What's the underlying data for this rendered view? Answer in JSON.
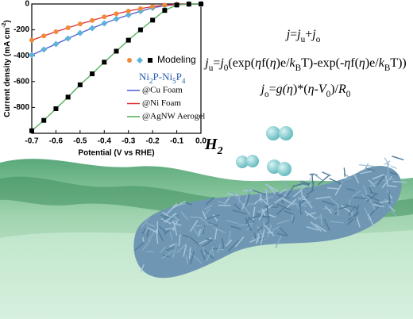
{
  "chart_data": {
    "type": "line",
    "x": [
      -0.7,
      -0.65,
      -0.6,
      -0.55,
      -0.5,
      -0.45,
      -0.4,
      -0.35,
      -0.3,
      -0.25,
      -0.2,
      -0.15,
      -0.1,
      -0.05,
      0.0
    ],
    "series": [
      {
        "name": "@Cu Foam",
        "color": "#4a5bd6",
        "marker_color": "#5ab4d8",
        "marker": "diamond",
        "values": [
          -395,
          -352,
          -310,
          -267,
          -225,
          -187,
          -150,
          -116,
          -85,
          -56,
          -30,
          -14,
          -5,
          -1,
          0
        ]
      },
      {
        "name": "@Ni Foam",
        "color": "#e03030",
        "marker_color": "#f08a3a",
        "marker": "circle",
        "values": [
          -280,
          -247,
          -215,
          -184,
          -155,
          -127,
          -100,
          -76,
          -55,
          -36,
          -20,
          -9,
          -3,
          -1,
          0
        ]
      },
      {
        "name": "@AgNW Aerogel",
        "color": "#4caf50",
        "marker_color": "#000000",
        "marker": "square",
        "values": [
          -980,
          -900,
          -810,
          -720,
          -625,
          -540,
          -450,
          -365,
          -280,
          -200,
          -125,
          -50,
          -8,
          -1,
          0
        ]
      }
    ],
    "marker_legend": "Modeling",
    "legend_title": [
      "Ni",
      "2",
      "P-Ni",
      "5",
      "P",
      "4"
    ],
    "xlabel": "Potential (V vs RHE)",
    "ylabel": [
      "Current density (mA cm",
      "-2",
      ")"
    ],
    "xlim": [
      -0.7,
      0.0
    ],
    "ylim": [
      -1000,
      0
    ],
    "xticks": [
      -0.7,
      -0.6,
      -0.5,
      -0.4,
      -0.3,
      -0.2,
      -0.1,
      {
        "value": 0.0,
        "label": "0.0"
      }
    ],
    "yticks": [
      0,
      -200,
      -400,
      -600,
      -800
    ]
  },
  "equations": [
    [
      "j",
      "=",
      "j",
      "u",
      "+",
      "j",
      "o"
    ],
    [
      "j",
      "u",
      "=",
      "j",
      "0",
      "(exp(",
      "η",
      "f(",
      "η",
      ")e/",
      "k",
      "B",
      "T)-exp(-",
      "η",
      "f(",
      "η",
      ")e/",
      "k",
      "B",
      "T))"
    ],
    [
      "j",
      "o",
      "=",
      "g(",
      "η",
      ")*(",
      "η",
      "-",
      "V",
      "0",
      ")/",
      "R",
      "0"
    ]
  ],
  "product_label": [
    "H",
    "2"
  ]
}
